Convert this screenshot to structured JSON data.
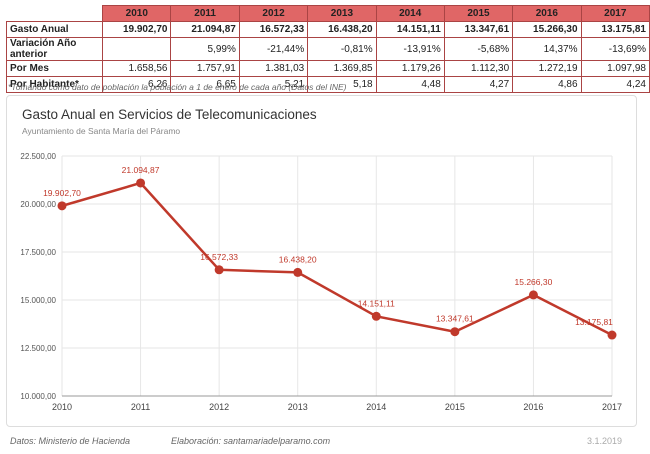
{
  "table": {
    "years": [
      "2010",
      "2011",
      "2012",
      "2013",
      "2014",
      "2015",
      "2016",
      "2017"
    ],
    "rows": [
      {
        "label": "Gasto Anual",
        "values": [
          "19.902,70",
          "21.094,87",
          "16.572,33",
          "16.438,20",
          "14.151,11",
          "13.347,61",
          "15.266,30",
          "13.175,81"
        ]
      },
      {
        "label": "Variación Año anterior",
        "values": [
          "",
          "5,99%",
          "-21,44%",
          "-0,81%",
          "-13,91%",
          "-5,68%",
          "14,37%",
          "-13,69%"
        ]
      },
      {
        "label": "Por Mes",
        "values": [
          "1.658,56",
          "1.757,91",
          "1.381,03",
          "1.369,85",
          "1.179,26",
          "1.112,30",
          "1.272,19",
          "1.097,98"
        ]
      },
      {
        "label": "Por Habitante*",
        "values": [
          "6,26",
          "6,65",
          "5,21",
          "5,18",
          "4,48",
          "4,27",
          "4,86",
          "4,24"
        ]
      }
    ]
  },
  "footnote": "*Tomando como dato de población la población a 1 de enero de cada año (Datos del INE)",
  "chart_data": {
    "type": "line",
    "title": "Gasto Anual en Servicios de Telecomunicaciones",
    "subtitle": "Ayuntamiento de Santa María del Páramo",
    "categories": [
      "2010",
      "2011",
      "2012",
      "2013",
      "2014",
      "2015",
      "2016",
      "2017"
    ],
    "values": [
      19902.7,
      21094.87,
      16572.33,
      16438.2,
      14151.11,
      13347.61,
      15266.3,
      13175.81
    ],
    "data_labels": [
      "19.902,70",
      "21.094,87",
      "16.572,33",
      "16.438,20",
      "14.151,11",
      "13.347,61",
      "15.266,30",
      "13.175,81"
    ],
    "ylim": [
      10000,
      22500
    ],
    "yticks": [
      10000,
      12500,
      15000,
      17500,
      20000,
      22500
    ],
    "ytick_labels": [
      "10.000,00",
      "12.500,00",
      "15.000,00",
      "17.500,00",
      "20.000,00",
      "22.500,00"
    ],
    "grid": true,
    "legend": "none",
    "color": "#c0392b"
  },
  "footer": {
    "source": "Datos: Ministerio de Hacienda",
    "credit": "Elaboración: santamariadelparamo.com",
    "date": "3.1.2019"
  }
}
